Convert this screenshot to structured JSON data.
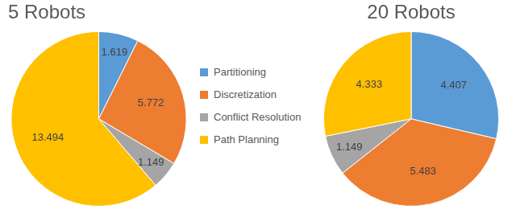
{
  "chart_data": [
    {
      "type": "pie",
      "title": "5 Robots",
      "categories": [
        "Partitioning",
        "Discretization",
        "Conflict Resolution",
        "Path Planning"
      ],
      "values": [
        1.619,
        5.772,
        1.149,
        13.494
      ],
      "colors": [
        "#5b9bd5",
        "#ed7d31",
        "#a5a5a5",
        "#ffc000"
      ],
      "data_labels": true,
      "legend": "right"
    },
    {
      "type": "pie",
      "title": "20 Robots",
      "categories": [
        "Partitioning",
        "Discretization",
        "Conflict Resolution",
        "Path Planning"
      ],
      "values": [
        4.407,
        5.483,
        1.149,
        4.333
      ],
      "colors": [
        "#5b9bd5",
        "#ed7d31",
        "#a5a5a5",
        "#ffc000"
      ],
      "data_labels": true
    }
  ]
}
